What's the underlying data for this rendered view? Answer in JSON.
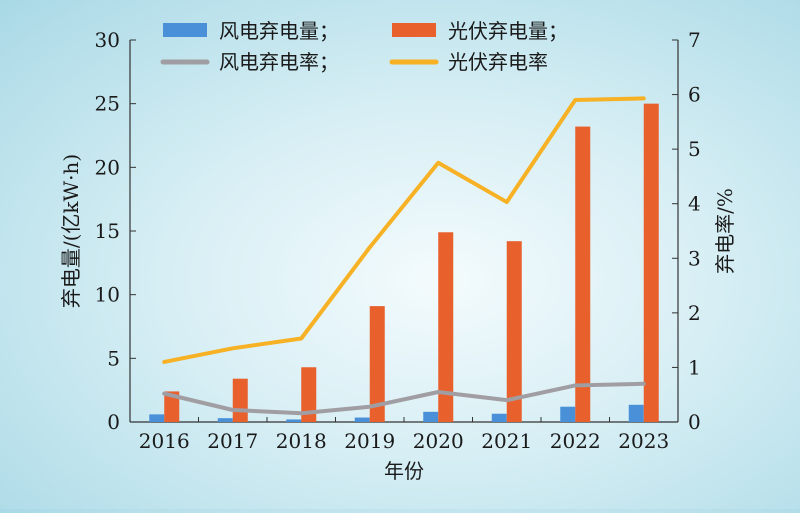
{
  "chart_data": {
    "type": "bar+line",
    "categories": [
      "2016",
      "2017",
      "2018",
      "2019",
      "2020",
      "2021",
      "2022",
      "2023"
    ],
    "xlabel": "年份",
    "ylabel_left": "弃电量/(亿kW·h)",
    "ylabel_right": "弃电率/%",
    "ylim_left": [
      0,
      30
    ],
    "yticks_left": [
      0,
      5,
      10,
      15,
      20,
      25,
      30
    ],
    "ylim_right": [
      0,
      7
    ],
    "yticks_right": [
      0,
      1,
      2,
      3,
      4,
      5,
      6,
      7
    ],
    "grid": false,
    "legend_position": "top",
    "series": [
      {
        "name": "风电弃电量；",
        "kind": "bar",
        "axis": "left",
        "color": "#4a90d9",
        "values": [
          0.6,
          0.3,
          0.2,
          0.35,
          0.8,
          0.65,
          1.2,
          1.35
        ]
      },
      {
        "name": "光伏弃电量；",
        "kind": "bar",
        "axis": "left",
        "color": "#e8602c",
        "values": [
          2.4,
          3.4,
          4.3,
          9.1,
          14.9,
          14.2,
          23.2,
          25.0
        ]
      },
      {
        "name": "风电弃电率；",
        "kind": "line",
        "axis": "right",
        "color": "#a09ea3",
        "values": [
          0.52,
          0.22,
          0.16,
          0.28,
          0.55,
          0.4,
          0.67,
          0.7
        ]
      },
      {
        "name": "光伏弃电率",
        "kind": "line",
        "axis": "right",
        "color": "#f7b125",
        "values": [
          1.1,
          1.35,
          1.53,
          3.2,
          4.75,
          4.03,
          5.9,
          5.93
        ]
      }
    ]
  }
}
